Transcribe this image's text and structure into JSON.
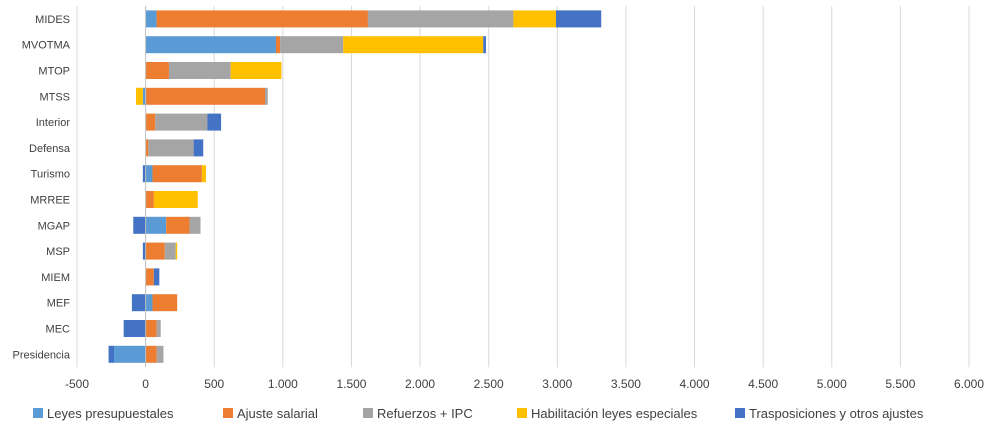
{
  "chart_data": {
    "type": "bar",
    "orientation": "horizontal",
    "stacked": true,
    "categories": [
      "MIDES",
      "MVOTMA",
      "MTOP",
      "MTSS",
      "Interior",
      "Defensa",
      "Turismo",
      "MRREE",
      "MGAP",
      "MSP",
      "MIEM",
      "MEF",
      "MEC",
      "Presidencia"
    ],
    "series": [
      {
        "name": "Leyes presupuestales",
        "color": "#5B9BD5",
        "values": [
          80,
          950,
          0,
          -20,
          0,
          0,
          50,
          0,
          150,
          0,
          0,
          50,
          0,
          -230
        ]
      },
      {
        "name": "Ajuste salarial",
        "color": "#ED7D31",
        "values": [
          1540,
          30,
          170,
          870,
          70,
          20,
          360,
          60,
          170,
          140,
          60,
          180,
          80,
          80
        ]
      },
      {
        "name": "Refuerzos + IPC",
        "color": "#A5A5A5",
        "values": [
          1060,
          460,
          450,
          20,
          380,
          330,
          0,
          0,
          80,
          80,
          0,
          0,
          30,
          50
        ]
      },
      {
        "name": "Habilitación leyes especiales",
        "color": "#FFC000",
        "values": [
          310,
          1020,
          370,
          -50,
          0,
          0,
          30,
          320,
          0,
          10,
          0,
          0,
          0,
          0
        ]
      },
      {
        "name": "Trasposiciones y otros ajustes",
        "color": "#4472C4",
        "values": [
          330,
          20,
          0,
          0,
          100,
          70,
          -20,
          0,
          -90,
          -20,
          40,
          -100,
          -160,
          -40
        ]
      }
    ],
    "xlim": [
      -500,
      6000
    ],
    "xticks": [
      -500,
      0,
      500,
      1000,
      1500,
      2000,
      2500,
      3000,
      3500,
      4000,
      4500,
      5000,
      5500,
      6000
    ],
    "xtick_labels": [
      "-500",
      "0",
      "500",
      "1.000",
      "1.500",
      "2.000",
      "2.500",
      "3.000",
      "3.500",
      "4.000",
      "4.500",
      "5.000",
      "5.500",
      "6.000"
    ],
    "grid": true,
    "legend_position": "bottom",
    "title": "",
    "xlabel": "",
    "ylabel": ""
  }
}
